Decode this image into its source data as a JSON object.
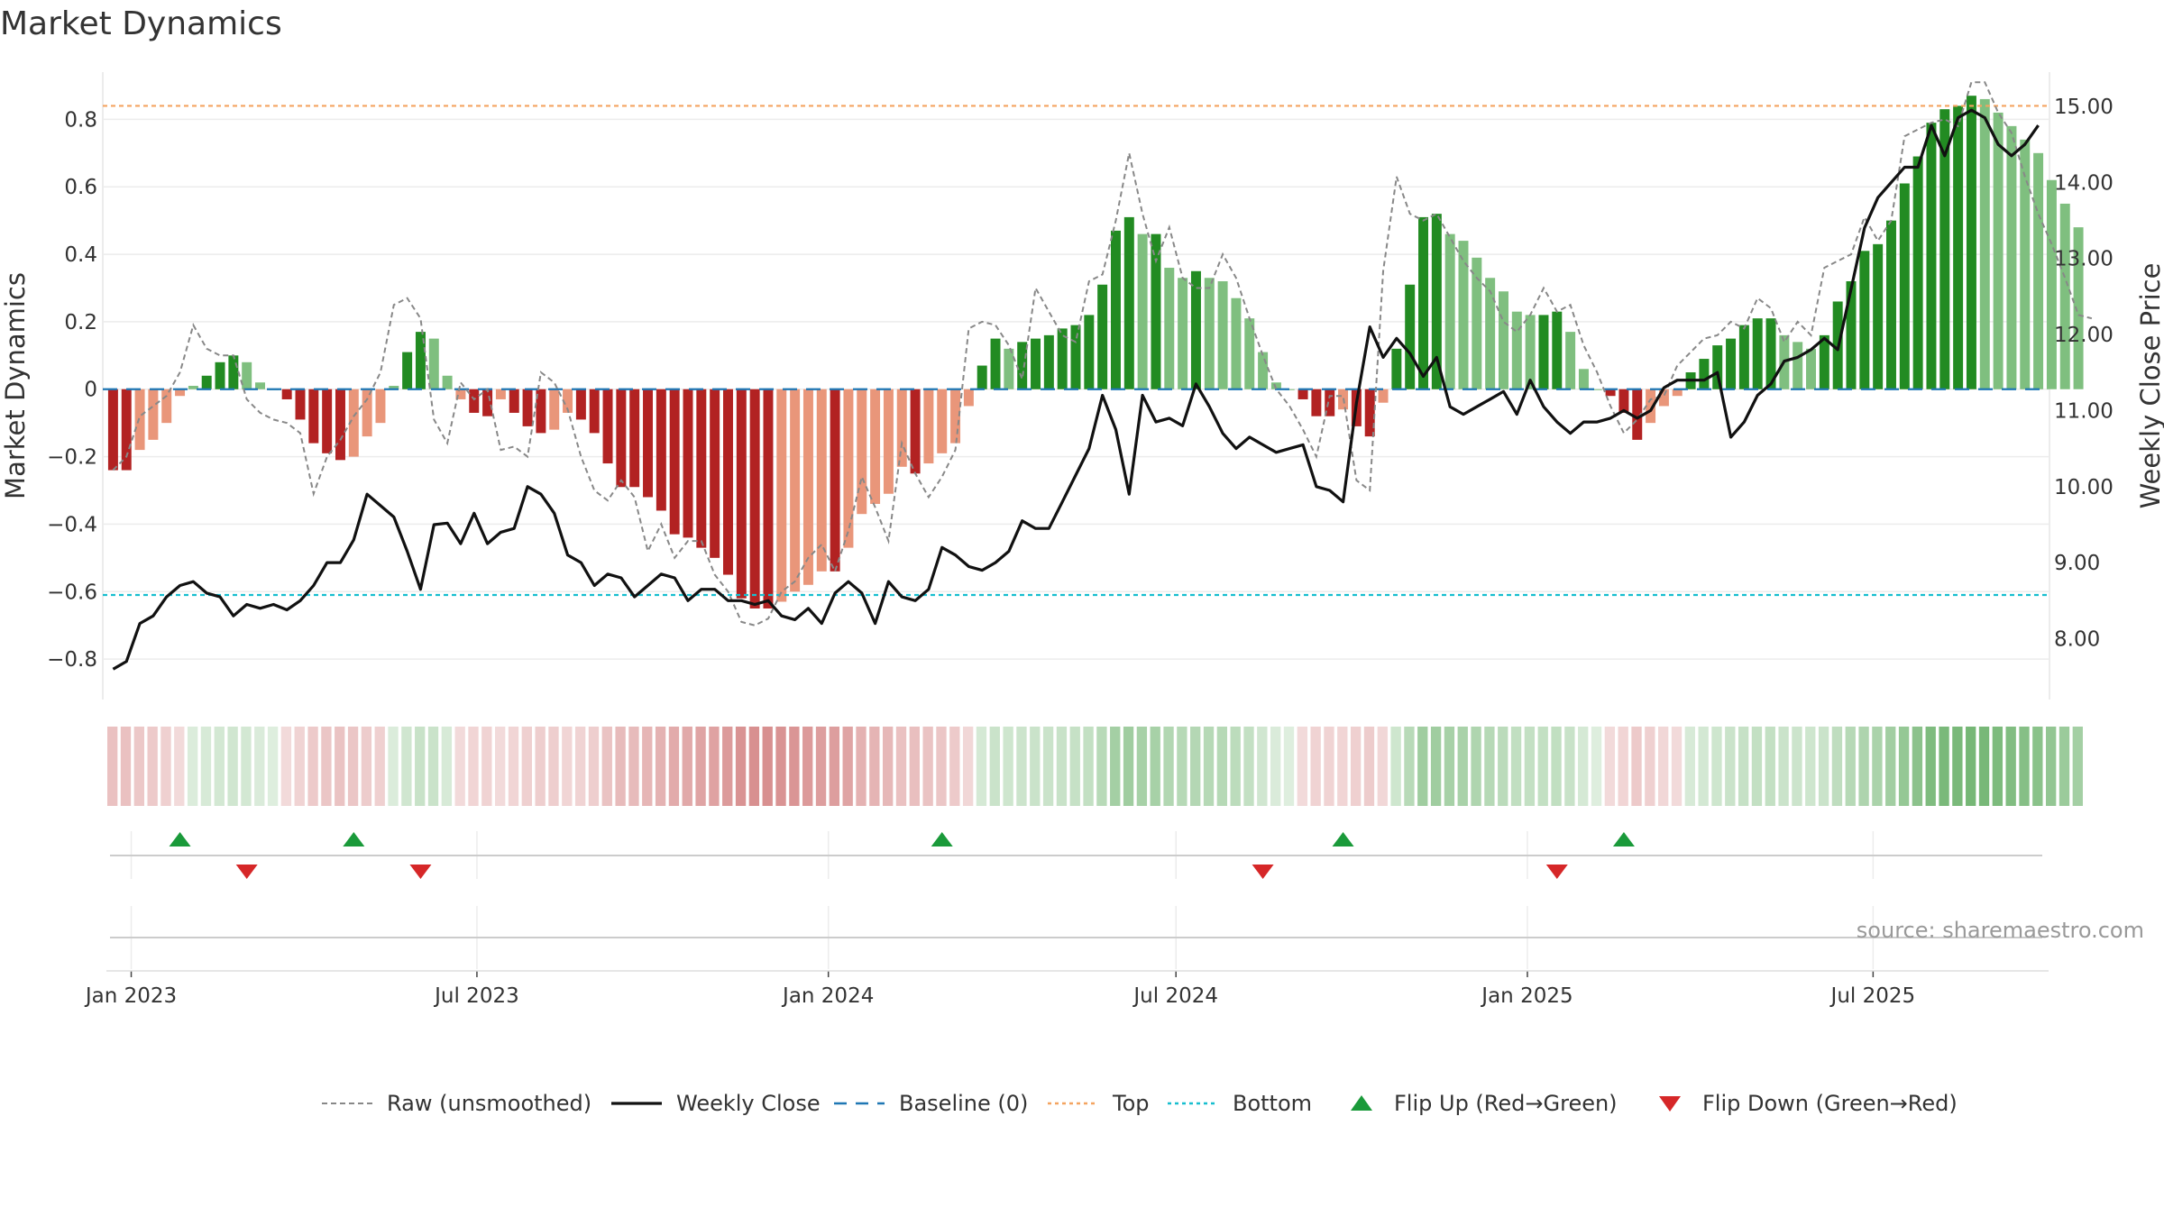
{
  "chart_data": {
    "type": "bar",
    "title": "Market Dynamics",
    "ylabel": "Market Dynamics",
    "y2label": "Weekly Close Price",
    "source": "source: sharemaestro.com",
    "ylim": [
      -0.92,
      0.94
    ],
    "y2lim": [
      7.2,
      15.45
    ],
    "y_ticks": [
      "−0.8",
      "−0.6",
      "−0.4",
      "−0.2",
      "0",
      "0.2",
      "0.4",
      "0.6",
      "0.8"
    ],
    "y_tick_values": [
      -0.8,
      -0.6,
      -0.4,
      -0.2,
      0,
      0.2,
      0.4,
      0.6,
      0.8
    ],
    "y2_ticks": [
      "8.00",
      "9.00",
      "10.00",
      "11.00",
      "12.00",
      "13.00",
      "14.00",
      "15.00"
    ],
    "y2_tick_values": [
      8,
      9,
      10,
      11,
      12,
      13,
      14,
      15
    ],
    "x_start": "2022-12-19",
    "week_count": 145,
    "x_ticks": [
      {
        "label": "Jan 2023",
        "date": "2023-01-01"
      },
      {
        "label": "Jul 2023",
        "date": "2023-07-01"
      },
      {
        "label": "Jan 2024",
        "date": "2024-01-01"
      },
      {
        "label": "Jul 2024",
        "date": "2024-07-01"
      },
      {
        "label": "Jan 2025",
        "date": "2025-01-01"
      },
      {
        "label": "Jul 2025",
        "date": "2025-07-01"
      }
    ],
    "reference_lines": {
      "top": 0.84,
      "bottom": -0.61,
      "baseline": 0
    },
    "colors": {
      "strong_green": "#228b22",
      "light_green": "#7fbf7f",
      "strong_red": "#b22222",
      "light_red": "#e9967a",
      "raw": "#888888",
      "close": "#111111",
      "baseline": "#1f77b4",
      "top": "#f4a460",
      "bottom": "#17becf",
      "flip_up": "#1a9a3a",
      "flip_down": "#d62728"
    },
    "series": [
      {
        "name": "Market Dynamics",
        "values": [
          -0.24,
          -0.24,
          -0.18,
          -0.15,
          -0.1,
          -0.02,
          0.01,
          0.04,
          0.08,
          0.1,
          0.08,
          0.02,
          0.0,
          -0.03,
          -0.09,
          -0.16,
          -0.19,
          -0.21,
          -0.2,
          -0.14,
          -0.1,
          0.01,
          0.11,
          0.17,
          0.15,
          0.04,
          -0.03,
          -0.07,
          -0.08,
          -0.03,
          -0.07,
          -0.11,
          -0.13,
          -0.12,
          -0.07,
          -0.09,
          -0.13,
          -0.22,
          -0.29,
          -0.29,
          -0.32,
          -0.36,
          -0.43,
          -0.44,
          -0.47,
          -0.5,
          -0.55,
          -0.62,
          -0.65,
          -0.65,
          -0.63,
          -0.6,
          -0.58,
          -0.54,
          -0.54,
          -0.47,
          -0.37,
          -0.34,
          -0.31,
          -0.23,
          -0.25,
          -0.22,
          -0.19,
          -0.16,
          -0.05,
          0.07,
          0.15,
          0.12,
          0.14,
          0.15,
          0.16,
          0.18,
          0.19,
          0.22,
          0.31,
          0.47,
          0.51,
          0.46,
          0.46,
          0.36,
          0.33,
          0.35,
          0.33,
          0.32,
          0.27,
          0.21,
          0.11,
          0.02,
          0.0,
          -0.03,
          -0.08,
          -0.08,
          -0.06,
          -0.11,
          -0.14,
          -0.04,
          0.12,
          0.31,
          0.51,
          0.52,
          0.46,
          0.44,
          0.39,
          0.33,
          0.29,
          0.23,
          0.22,
          0.22,
          0.23,
          0.17,
          0.06,
          0.0,
          -0.02,
          -0.07,
          -0.15,
          -0.1,
          -0.05,
          -0.02,
          0.05,
          0.09,
          0.13,
          0.15,
          0.19,
          0.21,
          0.21,
          0.16,
          0.14,
          0.12,
          0.16,
          0.26,
          0.32,
          0.41,
          0.43,
          0.5,
          0.61,
          0.69,
          0.79,
          0.83,
          0.84,
          0.87,
          0.86,
          0.82,
          0.78,
          0.74,
          0.7,
          0.62,
          0.55,
          0.48
        ]
      },
      {
        "name": "Raw (unsmoothed)",
        "values": [
          -0.24,
          -0.2,
          -0.08,
          -0.05,
          -0.02,
          0.05,
          0.19,
          0.12,
          0.1,
          0.1,
          -0.03,
          -0.07,
          -0.09,
          -0.1,
          -0.13,
          -0.31,
          -0.2,
          -0.15,
          -0.08,
          -0.03,
          0.05,
          0.25,
          0.27,
          0.21,
          -0.09,
          -0.16,
          0.02,
          -0.03,
          0.0,
          -0.18,
          -0.17,
          -0.2,
          0.05,
          0.02,
          -0.06,
          -0.2,
          -0.3,
          -0.33,
          -0.27,
          -0.32,
          -0.48,
          -0.4,
          -0.5,
          -0.45,
          -0.45,
          -0.55,
          -0.6,
          -0.69,
          -0.7,
          -0.68,
          -0.6,
          -0.57,
          -0.5,
          -0.46,
          -0.54,
          -0.42,
          -0.26,
          -0.35,
          -0.45,
          -0.16,
          -0.25,
          -0.32,
          -0.26,
          -0.18,
          0.18,
          0.2,
          0.19,
          0.13,
          0.03,
          0.3,
          0.23,
          0.16,
          0.14,
          0.32,
          0.34,
          0.5,
          0.7,
          0.52,
          0.38,
          0.48,
          0.33,
          0.3,
          0.3,
          0.4,
          0.33,
          0.21,
          0.1,
          0.0,
          -0.05,
          -0.12,
          -0.2,
          -0.02,
          -0.02,
          -0.27,
          -0.3,
          0.35,
          0.63,
          0.52,
          0.5,
          0.52,
          0.45,
          0.38,
          0.33,
          0.29,
          0.2,
          0.17,
          0.22,
          0.3,
          0.23,
          0.25,
          0.13,
          0.05,
          -0.05,
          -0.13,
          -0.09,
          -0.03,
          -0.02,
          0.07,
          0.11,
          0.15,
          0.16,
          0.2,
          0.18,
          0.27,
          0.24,
          0.14,
          0.2,
          0.16,
          0.36,
          0.38,
          0.4,
          0.51,
          0.44,
          0.5,
          0.75,
          0.77,
          0.79,
          0.8,
          0.78,
          0.91,
          0.91,
          0.82,
          0.76,
          0.63,
          0.52,
          0.43,
          0.33,
          0.22,
          0.21
        ]
      },
      {
        "name": "Weekly Close",
        "values": [
          7.6,
          7.7,
          8.2,
          8.3,
          8.55,
          8.7,
          8.75,
          8.6,
          8.55,
          8.3,
          8.45,
          8.4,
          8.45,
          8.38,
          8.5,
          8.7,
          9.0,
          9.0,
          9.3,
          9.9,
          9.75,
          9.6,
          9.15,
          8.65,
          9.5,
          9.52,
          9.25,
          9.65,
          9.25,
          9.4,
          9.45,
          10.0,
          9.9,
          9.65,
          9.1,
          9.0,
          8.7,
          8.85,
          8.8,
          8.55,
          8.7,
          8.85,
          8.8,
          8.5,
          8.65,
          8.65,
          8.5,
          8.5,
          8.45,
          8.5,
          8.3,
          8.25,
          8.4,
          8.2,
          8.6,
          8.75,
          8.6,
          8.2,
          8.75,
          8.55,
          8.5,
          8.65,
          9.2,
          9.1,
          8.95,
          8.9,
          9.0,
          9.15,
          9.55,
          9.45,
          9.45,
          9.8,
          10.15,
          10.5,
          11.2,
          10.75,
          9.9,
          11.2,
          10.85,
          10.9,
          10.8,
          11.35,
          11.05,
          10.7,
          10.5,
          10.65,
          10.55,
          10.45,
          10.5,
          10.55,
          10.0,
          9.95,
          9.8,
          11.1,
          12.1,
          11.7,
          11.95,
          11.75,
          11.45,
          11.7,
          11.05,
          10.95,
          11.05,
          11.15,
          11.25,
          10.95,
          11.4,
          11.05,
          10.85,
          10.7,
          10.85,
          10.85,
          10.9,
          11.0,
          10.9,
          11.0,
          11.3,
          11.4,
          11.4,
          11.4,
          11.5,
          10.65,
          10.85,
          11.2,
          11.35,
          11.65,
          11.7,
          11.8,
          11.95,
          11.8,
          12.6,
          13.4,
          13.8,
          14.0,
          14.2,
          14.2,
          14.75,
          14.35,
          14.85,
          14.95,
          14.85,
          14.5,
          14.35,
          14.5,
          14.75
        ]
      }
    ],
    "flip_up_weeks": [
      5,
      18,
      62,
      92,
      113
    ],
    "flip_down_weeks": [
      10,
      23,
      86,
      108
    ],
    "legend": [
      {
        "label": "Raw (unsmoothed)",
        "kind": "dashed-gray"
      },
      {
        "label": "Weekly Close",
        "kind": "solid-black"
      },
      {
        "label": "Baseline (0)",
        "kind": "dashed-blue"
      },
      {
        "label": "Top",
        "kind": "dotted-orange"
      },
      {
        "label": "Bottom",
        "kind": "dotted-cyan"
      },
      {
        "label": "Flip Up (Red→Green)",
        "kind": "triangle-up"
      },
      {
        "label": "Flip Down (Green→Red)",
        "kind": "triangle-down"
      }
    ],
    "legend_position": "bottom-center"
  }
}
